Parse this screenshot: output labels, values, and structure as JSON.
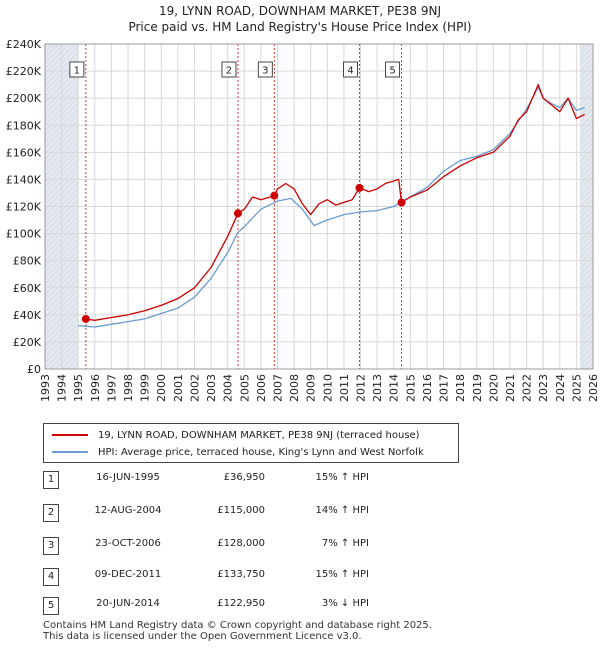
{
  "title_line1": "19, LYNN ROAD, DOWNHAM MARKET, PE38 9NJ",
  "title_line2": "Price paid vs. HM Land Registry's House Price Index (HPI)",
  "colors": {
    "price_line": "#cc0000",
    "hpi_line": "#6a9cd0",
    "marker_border": "#cc0000",
    "shade": "#dde6f0"
  },
  "chart_data": {
    "type": "line",
    "ylim": [
      0,
      240000
    ],
    "xlim": [
      1993,
      2026
    ],
    "y_ticks": [
      0,
      20000,
      40000,
      60000,
      80000,
      100000,
      120000,
      140000,
      160000,
      180000,
      200000,
      220000,
      240000
    ],
    "y_tick_labels": [
      "£0",
      "£20K",
      "£40K",
      "£60K",
      "£80K",
      "£100K",
      "£120K",
      "£140K",
      "£160K",
      "£180K",
      "£200K",
      "£220K",
      "£240K"
    ],
    "x_ticks": [
      1993,
      1994,
      1995,
      1996,
      1997,
      1998,
      1999,
      2000,
      2001,
      2002,
      2003,
      2004,
      2005,
      2006,
      2007,
      2008,
      2009,
      2010,
      2011,
      2012,
      2013,
      2014,
      2015,
      2016,
      2017,
      2018,
      2019,
      2020,
      2021,
      2022,
      2023,
      2024,
      2025,
      2026
    ],
    "x_tick_labels": [
      "1993",
      "1994",
      "1995",
      "1996",
      "1997",
      "1998",
      "1999",
      "2000",
      "2001",
      "2002",
      "2003",
      "2004",
      "2005",
      "2006",
      "2007",
      "2008",
      "2009",
      "2010",
      "2011",
      "2012",
      "2013",
      "2014",
      "2015",
      "2016",
      "2017",
      "2018",
      "2019",
      "2020",
      "2021",
      "2022",
      "2023",
      "2024",
      "2025",
      "2026"
    ],
    "shaded_ranges": [
      [
        1993,
        1995.0
      ],
      [
        2025.2,
        2026
      ]
    ],
    "series": [
      {
        "name": "19, LYNN ROAD, DOWNHAM MARKET, PE38 9NJ (terraced house)",
        "x": [
          1995.46,
          1996,
          1997,
          1998,
          1999,
          2000,
          2001,
          2002,
          2003,
          2004,
          2004.62,
          2005,
          2005.5,
          2006,
          2006.81,
          2007,
          2007.5,
          2008,
          2008.5,
          2009,
          2009.5,
          2010,
          2010.5,
          2011,
          2011.5,
          2011.94,
          2012.5,
          2013,
          2013.5,
          2014.3,
          2014.47,
          2015,
          2016,
          2017,
          2018,
          2019,
          2020,
          2021,
          2021.5,
          2022,
          2022.7,
          2023,
          2023.5,
          2024,
          2024.5,
          2025,
          2025.5
        ],
        "y": [
          36950,
          36000,
          38000,
          40000,
          43000,
          47000,
          52000,
          60000,
          75000,
          98000,
          115000,
          118000,
          127000,
          125000,
          128000,
          133000,
          137000,
          133000,
          122000,
          114000,
          122000,
          125000,
          121000,
          123000,
          125000,
          133750,
          131000,
          133000,
          137000,
          140000,
          122950,
          127000,
          132000,
          142000,
          150000,
          156000,
          160000,
          172000,
          184000,
          190000,
          210000,
          200000,
          195000,
          190000,
          200000,
          185000,
          188000
        ]
      },
      {
        "name": "HPI: Average price, terraced house, King's Lynn and West Norfolk",
        "x": [
          1995.0,
          1996,
          1997,
          1998,
          1999,
          2000,
          2001,
          2002,
          2003,
          2004,
          2004.62,
          2005,
          2006,
          2007,
          2007.8,
          2008.5,
          2009.2,
          2010,
          2011,
          2012,
          2013,
          2014,
          2015,
          2016,
          2017,
          2018,
          2019,
          2020,
          2021,
          2022,
          2022.7,
          2023,
          2023.5,
          2024,
          2024.5,
          2025,
          2025.5
        ],
        "y": [
          32000,
          31000,
          33000,
          35000,
          37000,
          41000,
          45000,
          53000,
          67000,
          86000,
          101000,
          105000,
          118000,
          124000,
          126000,
          118000,
          106000,
          110000,
          114000,
          116000,
          117000,
          120000,
          127000,
          134000,
          146000,
          154000,
          157000,
          162000,
          174000,
          192000,
          208000,
          200000,
          196000,
          193000,
          200000,
          191000,
          193000
        ]
      }
    ],
    "sales": [
      {
        "label": "1",
        "x": 1995.46,
        "y": 36950
      },
      {
        "label": "2",
        "x": 2004.62,
        "y": 115000
      },
      {
        "label": "3",
        "x": 2006.81,
        "y": 128000
      },
      {
        "label": "4",
        "x": 2011.94,
        "y": 133750
      },
      {
        "label": "5",
        "x": 2014.47,
        "y": 122950
      }
    ]
  },
  "legend": {
    "price_label": "19, LYNN ROAD, DOWNHAM MARKET, PE38 9NJ (terraced house)",
    "hpi_label": "HPI: Average price, terraced house, King's Lynn and West Norfolk"
  },
  "transactions": [
    {
      "num": "1",
      "date": "16-JUN-1995",
      "price": "£36,950",
      "hpi": "15% ↑ HPI"
    },
    {
      "num": "2",
      "date": "12-AUG-2004",
      "price": "£115,000",
      "hpi": "14% ↑ HPI"
    },
    {
      "num": "3",
      "date": "23-OCT-2006",
      "price": "£128,000",
      "hpi": "7% ↑ HPI"
    },
    {
      "num": "4",
      "date": "09-DEC-2011",
      "price": "£133,750",
      "hpi": "15% ↑ HPI"
    },
    {
      "num": "5",
      "date": "20-JUN-2014",
      "price": "£122,950",
      "hpi": "3% ↓ HPI"
    }
  ],
  "footer_line1": "Contains HM Land Registry data © Crown copyright and database right 2025.",
  "footer_line2": "This data is licensed under the Open Government Licence v3.0."
}
